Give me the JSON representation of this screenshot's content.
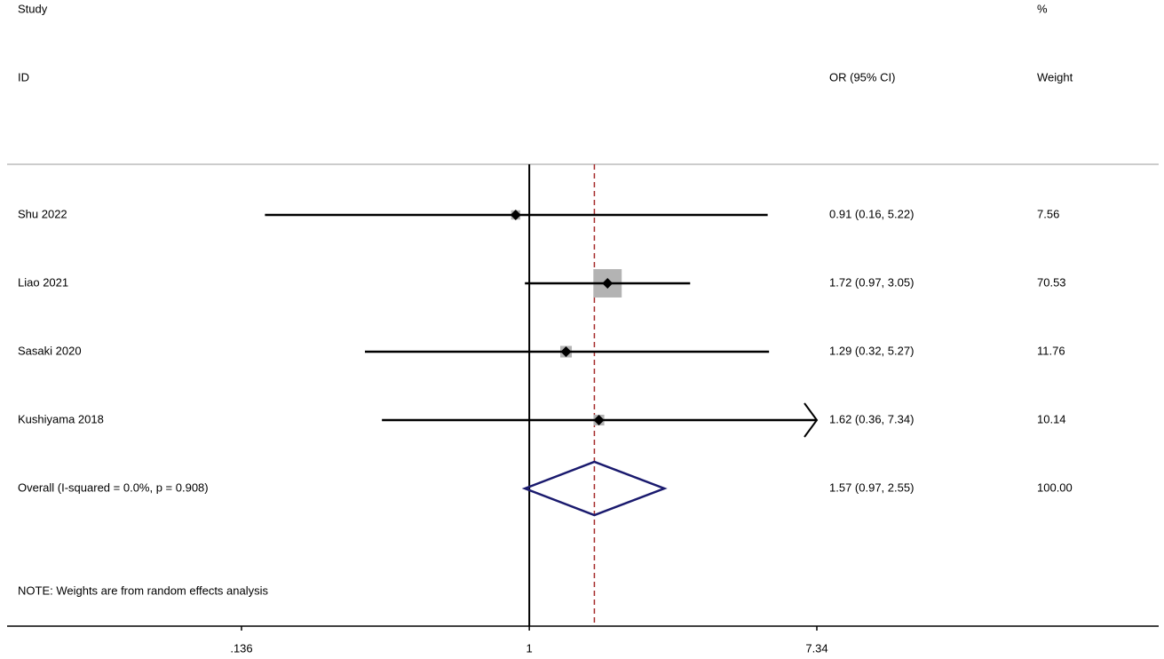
{
  "chart_data": {
    "type": "forest",
    "headers": {
      "study": "Study",
      "id": "ID",
      "effect": "OR (95% CI)",
      "weight_top": "%",
      "weight": "Weight"
    },
    "categories": [
      "Shu 2022",
      "Liao 2021",
      "Sasaki 2020",
      "Kushiyama 2018"
    ],
    "values": [
      0.91,
      1.72,
      1.29,
      1.62
    ],
    "lower": [
      0.16,
      0.97,
      0.32,
      0.36
    ],
    "upper": [
      5.22,
      3.05,
      5.27,
      7.34
    ],
    "value_labels": [
      "0.91 (0.16, 5.22)",
      "1.72 (0.97, 3.05)",
      "1.29 (0.32, 5.27)",
      "1.62 (0.36, 7.34)"
    ],
    "weights": [
      7.56,
      70.53,
      11.76,
      10.14
    ],
    "overall": {
      "label": "Overall  (I-squared = 0.0%, p = 0.908)",
      "value": 1.57,
      "lower": 0.97,
      "upper": 2.55,
      "value_label": "1.57 (0.97, 2.55)",
      "weight": {
        "value": 100,
        "label": "100.00"
      }
    },
    "note": "NOTE: Weights are from random effects analysis",
    "xlim": [
      0.136,
      7.34
    ],
    "xticks": [
      {
        "value": 0.136,
        "label": ".136"
      },
      1,
      7.34
    ],
    "log_scale": true,
    "null_line": 1,
    "ci_color": "#000000",
    "box_color": "#b3b3b3",
    "diamond_color": "#1a1a6e",
    "overall_line_color": "#a52a2a"
  }
}
